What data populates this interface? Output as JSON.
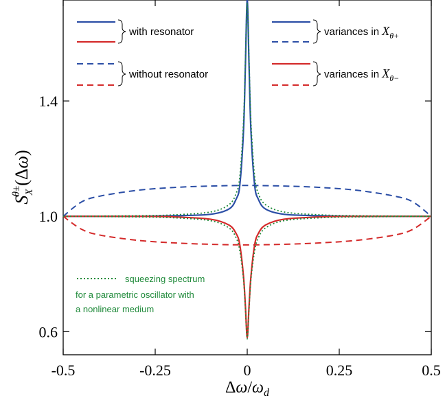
{
  "chart_data": {
    "type": "line",
    "title": "",
    "xlabel": "Δω/ω_d",
    "ylabel": "S_X^{θ±}(Δω)",
    "xlim": [
      -0.5,
      0.5
    ],
    "ylim": [
      0.52,
      1.75
    ],
    "x_ticks": [
      -0.5,
      -0.25,
      0,
      0.25,
      0.5
    ],
    "x_tick_labels": [
      "-0.5",
      "-0.25",
      "0",
      "0.25",
      "0.5"
    ],
    "y_ticks": [
      0.6,
      1.0,
      1.4
    ],
    "y_tick_labels": [
      "0.6",
      "1.0",
      "1.4"
    ],
    "grid": false,
    "series": [
      {
        "name": "variances in X_θ+ with resonator",
        "color": "#2b4ea6",
        "dash": "solid",
        "x": [
          -0.5,
          -0.3,
          -0.2,
          -0.1,
          -0.05,
          -0.03,
          -0.02,
          -0.01,
          -0.005,
          0,
          0.005,
          0.01,
          0.02,
          0.03,
          0.05,
          0.1,
          0.2,
          0.3,
          0.5
        ],
        "y": [
          1.0,
          1.0,
          1.002,
          1.007,
          1.025,
          1.06,
          1.11,
          1.3,
          1.52,
          1.75,
          1.52,
          1.3,
          1.11,
          1.06,
          1.025,
          1.007,
          1.002,
          1.0,
          1.0
        ]
      },
      {
        "name": "variances in X_θ− with resonator",
        "color": "#d42a2a",
        "dash": "solid",
        "x": [
          -0.5,
          -0.3,
          -0.2,
          -0.1,
          -0.05,
          -0.03,
          -0.02,
          -0.01,
          -0.005,
          0,
          0.005,
          0.01,
          0.02,
          0.03,
          0.05,
          0.1,
          0.2,
          0.3,
          0.5
        ],
        "y": [
          1.0,
          1.0,
          0.998,
          0.99,
          0.97,
          0.94,
          0.9,
          0.79,
          0.69,
          0.58,
          0.69,
          0.79,
          0.9,
          0.94,
          0.97,
          0.99,
          0.998,
          1.0,
          1.0
        ]
      },
      {
        "name": "variances in X_θ+ without resonator",
        "color": "#2b4ea6",
        "dash": "dashed",
        "x": [
          -0.5,
          -0.45,
          -0.4,
          -0.3,
          -0.2,
          -0.1,
          0,
          0.1,
          0.2,
          0.3,
          0.4,
          0.45,
          0.5
        ],
        "y": [
          1.0,
          1.05,
          1.07,
          1.09,
          1.1,
          1.105,
          1.107,
          1.105,
          1.1,
          1.09,
          1.07,
          1.05,
          1.0
        ]
      },
      {
        "name": "variances in X_θ− without resonator",
        "color": "#d42a2a",
        "dash": "dashed",
        "x": [
          -0.5,
          -0.45,
          -0.4,
          -0.3,
          -0.2,
          -0.1,
          0,
          0.1,
          0.2,
          0.3,
          0.4,
          0.45,
          0.5
        ],
        "y": [
          1.0,
          0.955,
          0.935,
          0.917,
          0.908,
          0.903,
          0.901,
          0.903,
          0.908,
          0.917,
          0.935,
          0.955,
          1.0
        ]
      },
      {
        "name": "squeezing spectrum (+)",
        "color": "#1f8a3a",
        "dash": "dotted",
        "x": [
          -0.5,
          -0.3,
          -0.2,
          -0.1,
          -0.05,
          -0.03,
          -0.02,
          -0.01,
          -0.005,
          0,
          0.005,
          0.01,
          0.02,
          0.03,
          0.05,
          0.1,
          0.2,
          0.3,
          0.5
        ],
        "y": [
          1.0,
          1.002,
          1.005,
          1.015,
          1.04,
          1.08,
          1.14,
          1.33,
          1.54,
          1.74,
          1.54,
          1.33,
          1.14,
          1.08,
          1.04,
          1.015,
          1.005,
          1.002,
          1.0
        ]
      },
      {
        "name": "squeezing spectrum (−)",
        "color": "#1f8a3a",
        "dash": "dotted",
        "x": [
          -0.5,
          -0.3,
          -0.2,
          -0.1,
          -0.05,
          -0.03,
          -0.02,
          -0.01,
          -0.005,
          0,
          0.005,
          0.01,
          0.02,
          0.03,
          0.05,
          0.1,
          0.2,
          0.3,
          0.5
        ],
        "y": [
          1.0,
          0.998,
          0.995,
          0.985,
          0.96,
          0.925,
          0.88,
          0.78,
          0.68,
          0.575,
          0.68,
          0.78,
          0.88,
          0.925,
          0.96,
          0.985,
          0.995,
          0.998,
          1.0
        ]
      }
    ],
    "legend": {
      "with_resonator": "with resonator",
      "without_resonator": "without resonator",
      "variances_plus": "variances in ",
      "variances_minus": "variances in ",
      "plus_symbol": "X",
      "plus_sub": "θ+",
      "minus_symbol": "X",
      "minus_sub": "θ−"
    },
    "annotation": [
      "squeezing spectrum",
      "for a parametric oscillator with",
      "a nonlinear medium"
    ]
  }
}
